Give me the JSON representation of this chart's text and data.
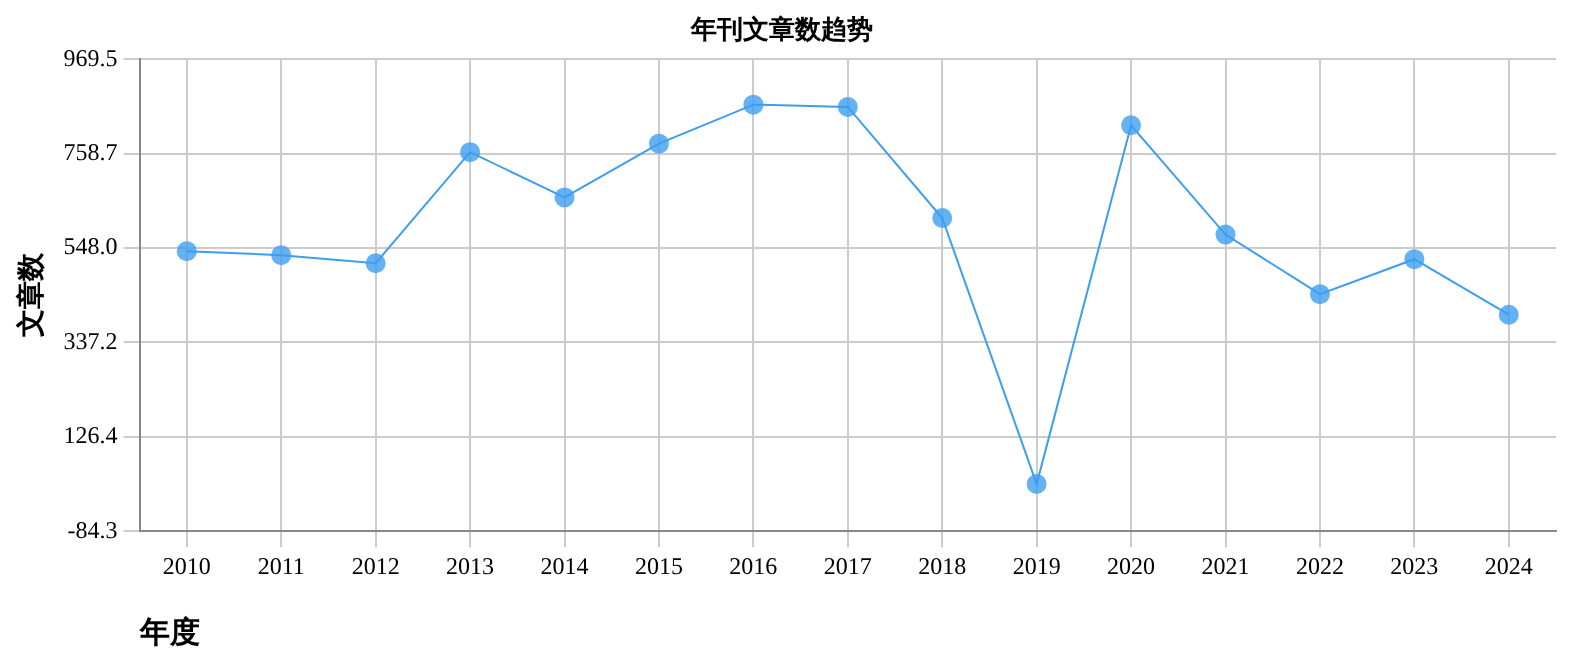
{
  "chart_data": {
    "type": "line",
    "title": "年刊文章数趋势",
    "xlabel": "年度",
    "ylabel": "文章数",
    "categories": [
      "2010",
      "2011",
      "2012",
      "2013",
      "2014",
      "2015",
      "2016",
      "2017",
      "2018",
      "2019",
      "2020",
      "2021",
      "2022",
      "2023",
      "2024"
    ],
    "series": [
      {
        "color": "#3d9df0",
        "values": [
          541,
          532,
          514,
          762,
          661,
          781,
          868,
          863,
          615,
          21,
          822,
          578,
          445,
          523,
          399
        ]
      }
    ],
    "ylim": [
      -84.3,
      969.5
    ],
    "yticks": [
      -84.3,
      126.4,
      337.2,
      {
        "value": 548,
        "label": "548.0"
      },
      758.7,
      969.5
    ],
    "grid": true,
    "legend": false,
    "marker": "circle",
    "line_style": "solid"
  }
}
